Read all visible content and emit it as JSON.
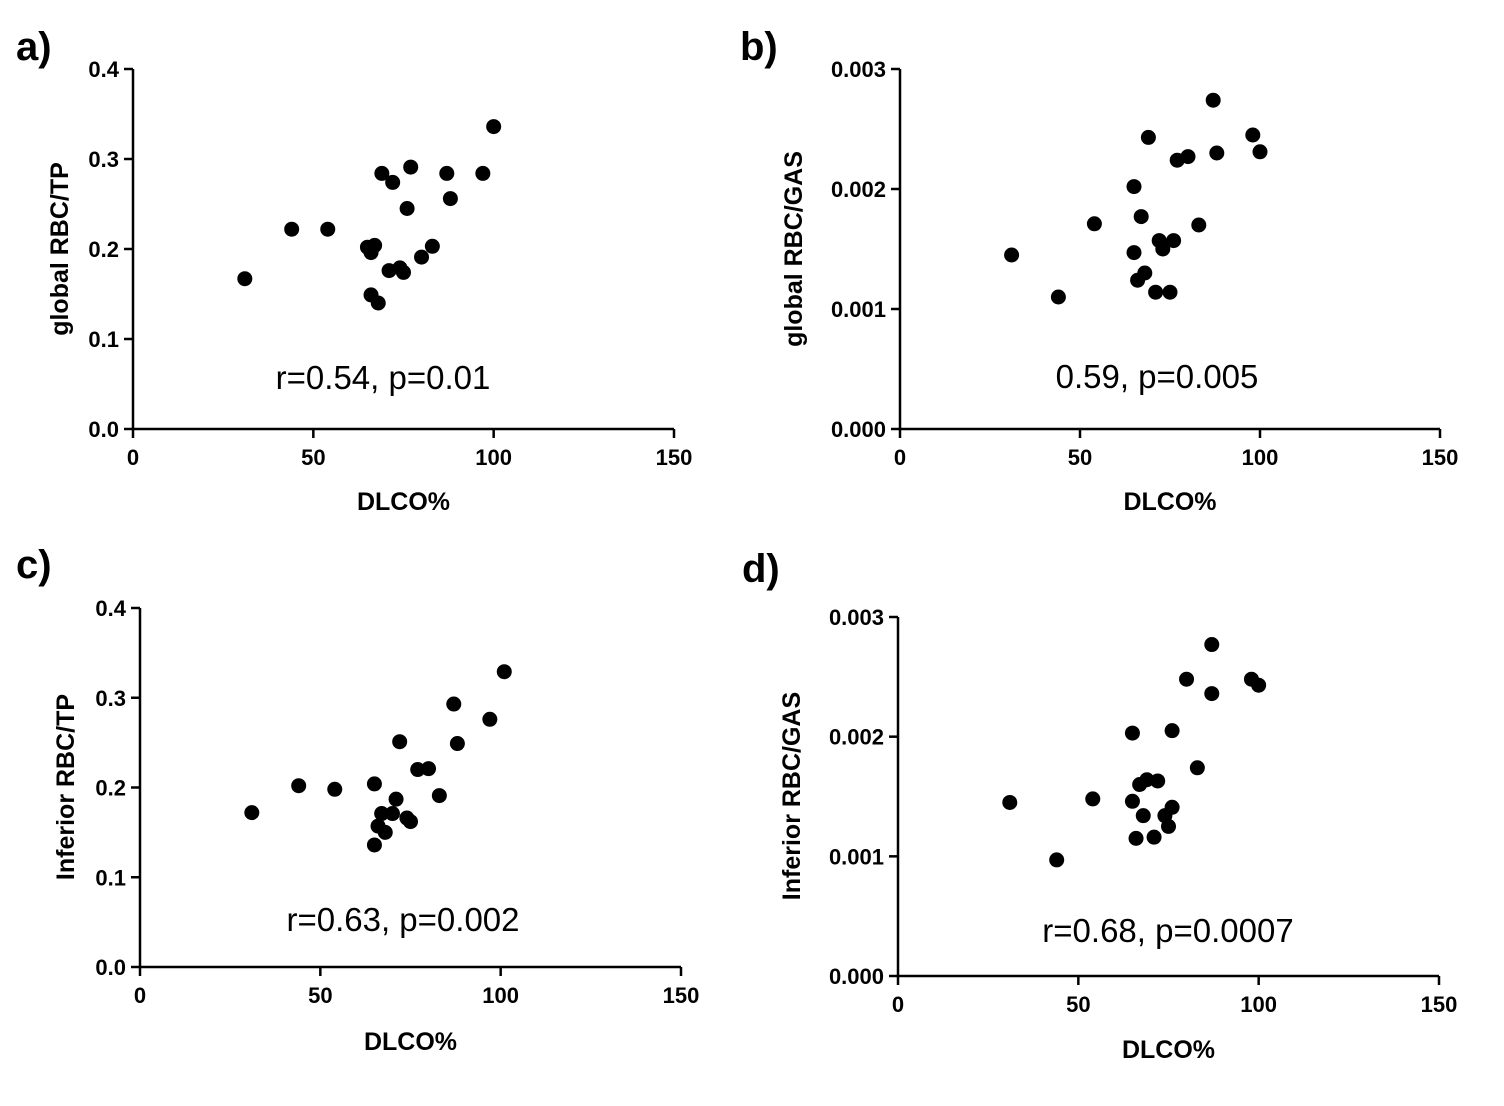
{
  "chart_data": [
    {
      "type": "scatter",
      "panel_label": "a)",
      "title": "",
      "xlabel": "DLCO%",
      "ylabel": "global RBC/TP",
      "xlim": [
        0,
        150
      ],
      "ylim": [
        0,
        0.4
      ],
      "xticks": [
        "0",
        "50",
        "100",
        "150"
      ],
      "yticks": [
        "0.0",
        "0.1",
        "0.2",
        "0.3",
        "0.4"
      ],
      "annotation": "r=0.54, p=0.01",
      "points": [
        {
          "x": 31,
          "y": 0.167
        },
        {
          "x": 44,
          "y": 0.222
        },
        {
          "x": 54,
          "y": 0.222
        },
        {
          "x": 65,
          "y": 0.202
        },
        {
          "x": 66,
          "y": 0.149
        },
        {
          "x": 66,
          "y": 0.196
        },
        {
          "x": 67,
          "y": 0.204
        },
        {
          "x": 68,
          "y": 0.14
        },
        {
          "x": 69,
          "y": 0.284
        },
        {
          "x": 71,
          "y": 0.176
        },
        {
          "x": 72,
          "y": 0.274
        },
        {
          "x": 74,
          "y": 0.179
        },
        {
          "x": 75,
          "y": 0.174
        },
        {
          "x": 76,
          "y": 0.245
        },
        {
          "x": 77,
          "y": 0.291
        },
        {
          "x": 80,
          "y": 0.191
        },
        {
          "x": 83,
          "y": 0.203
        },
        {
          "x": 87,
          "y": 0.284
        },
        {
          "x": 88,
          "y": 0.256
        },
        {
          "x": 97,
          "y": 0.284
        },
        {
          "x": 100,
          "y": 0.336
        }
      ]
    },
    {
      "type": "scatter",
      "panel_label": "b)",
      "title": "",
      "xlabel": "DLCO%",
      "ylabel": "global RBC/GAS",
      "xlim": [
        0,
        150
      ],
      "ylim": [
        0,
        0.003
      ],
      "xticks": [
        "0",
        "50",
        "100",
        "150"
      ],
      "yticks": [
        "0.000",
        "0.001",
        "0.002",
        "0.003"
      ],
      "annotation": "0.59, p=0.005",
      "points": [
        {
          "x": 31,
          "y": 0.00145
        },
        {
          "x": 44,
          "y": 0.0011
        },
        {
          "x": 54,
          "y": 0.00171
        },
        {
          "x": 65,
          "y": 0.00202
        },
        {
          "x": 65,
          "y": 0.00147
        },
        {
          "x": 66,
          "y": 0.00124
        },
        {
          "x": 67,
          "y": 0.00177
        },
        {
          "x": 68,
          "y": 0.0013
        },
        {
          "x": 69,
          "y": 0.00243
        },
        {
          "x": 71,
          "y": 0.00114
        },
        {
          "x": 72,
          "y": 0.00157
        },
        {
          "x": 73,
          "y": 0.0015
        },
        {
          "x": 75,
          "y": 0.00114
        },
        {
          "x": 76,
          "y": 0.00157
        },
        {
          "x": 77,
          "y": 0.00224
        },
        {
          "x": 80,
          "y": 0.00227
        },
        {
          "x": 83,
          "y": 0.0017
        },
        {
          "x": 87,
          "y": 0.00274
        },
        {
          "x": 88,
          "y": 0.0023
        },
        {
          "x": 98,
          "y": 0.00245
        },
        {
          "x": 100,
          "y": 0.00231
        }
      ]
    },
    {
      "type": "scatter",
      "panel_label": "c)",
      "title": "",
      "xlabel": "DLCO%",
      "ylabel": "Inferior RBC/TP",
      "xlim": [
        0,
        150
      ],
      "ylim": [
        0,
        0.4
      ],
      "xticks": [
        "0",
        "50",
        "100",
        "150"
      ],
      "yticks": [
        "0.0",
        "0.1",
        "0.2",
        "0.3",
        "0.4"
      ],
      "annotation": "r=0.63, p=0.002",
      "points": [
        {
          "x": 31,
          "y": 0.172
        },
        {
          "x": 44,
          "y": 0.202
        },
        {
          "x": 54,
          "y": 0.198
        },
        {
          "x": 65,
          "y": 0.204
        },
        {
          "x": 65,
          "y": 0.136
        },
        {
          "x": 66,
          "y": 0.157
        },
        {
          "x": 67,
          "y": 0.171
        },
        {
          "x": 68,
          "y": 0.15
        },
        {
          "x": 70,
          "y": 0.171
        },
        {
          "x": 71,
          "y": 0.187
        },
        {
          "x": 72,
          "y": 0.251
        },
        {
          "x": 74,
          "y": 0.166
        },
        {
          "x": 75,
          "y": 0.162
        },
        {
          "x": 77,
          "y": 0.22
        },
        {
          "x": 80,
          "y": 0.221
        },
        {
          "x": 83,
          "y": 0.191
        },
        {
          "x": 87,
          "y": 0.293
        },
        {
          "x": 88,
          "y": 0.249
        },
        {
          "x": 97,
          "y": 0.276
        },
        {
          "x": 101,
          "y": 0.329
        }
      ]
    },
    {
      "type": "scatter",
      "panel_label": "d)",
      "title": "",
      "xlabel": "DLCO%",
      "ylabel": "Inferior RBC/GAS",
      "xlim": [
        0,
        150
      ],
      "ylim": [
        0,
        0.003
      ],
      "xticks": [
        "0",
        "50",
        "100",
        "150"
      ],
      "yticks": [
        "0.000",
        "0.001",
        "0.002",
        "0.003"
      ],
      "annotation": "r=0.68, p=0.0007",
      "points": [
        {
          "x": 31,
          "y": 0.00145
        },
        {
          "x": 44,
          "y": 0.00097
        },
        {
          "x": 54,
          "y": 0.00148
        },
        {
          "x": 65,
          "y": 0.00203
        },
        {
          "x": 65,
          "y": 0.00146
        },
        {
          "x": 66,
          "y": 0.00115
        },
        {
          "x": 67,
          "y": 0.0016
        },
        {
          "x": 68,
          "y": 0.00134
        },
        {
          "x": 69,
          "y": 0.00164
        },
        {
          "x": 71,
          "y": 0.00116
        },
        {
          "x": 72,
          "y": 0.00163
        },
        {
          "x": 74,
          "y": 0.00134
        },
        {
          "x": 75,
          "y": 0.00125
        },
        {
          "x": 76,
          "y": 0.00141
        },
        {
          "x": 76,
          "y": 0.00205
        },
        {
          "x": 80,
          "y": 0.00248
        },
        {
          "x": 83,
          "y": 0.00174
        },
        {
          "x": 87,
          "y": 0.00277
        },
        {
          "x": 87,
          "y": 0.00236
        },
        {
          "x": 98,
          "y": 0.00248
        },
        {
          "x": 100,
          "y": 0.00243
        }
      ]
    }
  ]
}
